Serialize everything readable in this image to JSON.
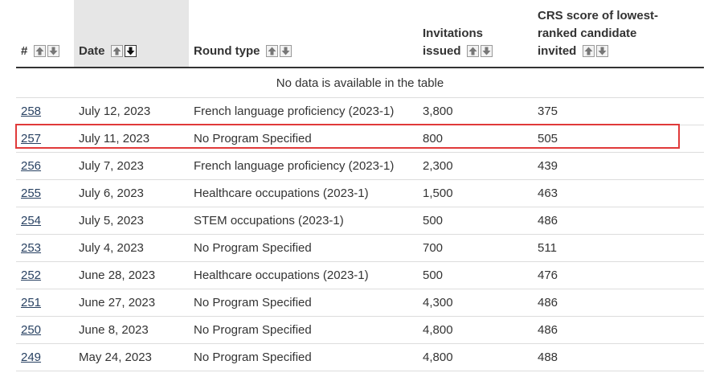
{
  "table": {
    "headers": {
      "number": "#",
      "date": "Date",
      "round_type": "Round type",
      "invitations_line1": "Invitations",
      "invitations_line2": "issued",
      "crs_line1": "CRS score of lowest-",
      "crs_line2": "ranked candidate",
      "crs_line3": "invited"
    },
    "sort_icons": {
      "up": "arrow-up-icon",
      "down": "arrow-down-icon"
    },
    "empty_message": "No data is available in the table",
    "rows": [
      {
        "number": "258",
        "date": "July 12, 2023",
        "round_type": "French language proficiency (2023-1)",
        "invitations": "3,800",
        "crs": "375"
      },
      {
        "number": "257",
        "date": "July 11, 2023",
        "round_type": "No Program Specified",
        "invitations": "800",
        "crs": "505"
      },
      {
        "number": "256",
        "date": "July 7, 2023",
        "round_type": "French language proficiency (2023-1)",
        "invitations": "2,300",
        "crs": "439"
      },
      {
        "number": "255",
        "date": "July 6, 2023",
        "round_type": "Healthcare occupations (2023-1)",
        "invitations": "1,500",
        "crs": "463"
      },
      {
        "number": "254",
        "date": "July 5, 2023",
        "round_type": "STEM occupations (2023-1)",
        "invitations": "500",
        "crs": "486"
      },
      {
        "number": "253",
        "date": "July 4, 2023",
        "round_type": "No Program Specified",
        "invitations": "700",
        "crs": "511"
      },
      {
        "number": "252",
        "date": "June 28, 2023",
        "round_type": "Healthcare occupations (2023-1)",
        "invitations": "500",
        "crs": "476"
      },
      {
        "number": "251",
        "date": "June 27, 2023",
        "round_type": "No Program Specified",
        "invitations": "4,300",
        "crs": "486"
      },
      {
        "number": "250",
        "date": "June 8, 2023",
        "round_type": "No Program Specified",
        "invitations": "4,800",
        "crs": "486"
      },
      {
        "number": "249",
        "date": "May 24, 2023",
        "round_type": "No Program Specified",
        "invitations": "4,800",
        "crs": "488"
      }
    ]
  },
  "colors": {
    "link": "#284162",
    "highlight": "#e03a3a",
    "sorted_header_bg": "#e6e6e6"
  }
}
